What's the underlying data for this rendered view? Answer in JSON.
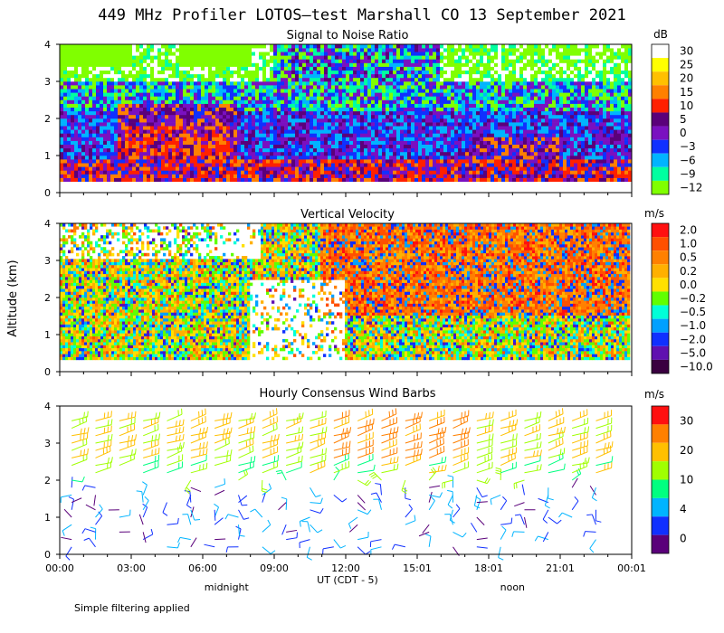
{
  "title": "449 MHz Profiler LOTOS—test Marshall CO 13 September 2021",
  "y_axis_label": "Altitude (km)",
  "x_axis_label": "UT  (CDT - 5)",
  "x_tick_labels": [
    "00:00",
    "03:00",
    "06:00",
    "09:00",
    "12:00",
    "15:01",
    "18:01",
    "21:01",
    "00:01"
  ],
  "x_markers": [
    {
      "label": "midnight",
      "hour": 7
    },
    {
      "label": "noon",
      "hour": 19
    }
  ],
  "footnote": "Simple filtering applied",
  "chart_data": [
    {
      "type": "heatmap",
      "title": "Signal to Noise Ratio",
      "units": "dB",
      "x_range_hours": [
        0,
        24
      ],
      "ylim": [
        0,
        4
      ],
      "y_ticks": [
        "4",
        "3",
        "2",
        "1",
        "0"
      ],
      "colorbar_labels": [
        "30",
        "25",
        "20",
        "15",
        "10",
        "5",
        "0",
        "−3",
        "−6",
        "−9",
        "−12"
      ],
      "colorbar_colors": [
        "#ffffff",
        "#ffff00",
        "#ffc000",
        "#ff8000",
        "#ff2000",
        "#5a007a",
        "#7a10c0",
        "#1030ff",
        "#00b4ff",
        "#00ffa0",
        "#80ff00"
      ],
      "description": "Low levels (0.3-1 km) strong 5-20 dB across the day; 1-2.5 km strong 10-20 dB from 02:30-07:30 and 17:00-21:00; upper levels mostly -6 to 30 dB noise-dominated."
    },
    {
      "type": "heatmap",
      "title": "Vertical Velocity",
      "units": "m/s",
      "x_range_hours": [
        0,
        24
      ],
      "ylim": [
        0,
        4
      ],
      "y_ticks": [
        "4",
        "3",
        "2",
        "1",
        "0"
      ],
      "colorbar_labels": [
        "2.0",
        "1.0",
        "0.5",
        "0.2",
        "0.0",
        "−0.2",
        "−0.5",
        "−1.0",
        "−2.0",
        "−5.0",
        "−10.0"
      ],
      "colorbar_colors": [
        "#ff1010",
        "#ff5000",
        "#ff8000",
        "#ffb000",
        "#ffe000",
        "#60ff00",
        "#00ffd8",
        "#00a0ff",
        "#1030ff",
        "#6010b0",
        "#3a0040"
      ],
      "description": "Mostly -0.2 to 1.0 m/s with strong variability; larger upward values after 12:00 at 2-4 km; data gaps below ~2.5 km 08:00-12:00."
    },
    {
      "type": "wind-barbs",
      "title": "Hourly Consensus Wind Barbs",
      "units": "m/s",
      "x_range_hours": [
        0,
        24
      ],
      "ylim": [
        0,
        4
      ],
      "y_ticks": [
        "4",
        "3",
        "2",
        "1",
        "0"
      ],
      "colorbar_labels": [
        "30",
        "20",
        "10",
        "4",
        "0"
      ],
      "colorbar_colors": [
        "#ff1010",
        "#ff8000",
        "#ffc000",
        "#a0ff00",
        "#00ff80",
        "#00b4ff",
        "#1030ff",
        "#5a007a"
      ],
      "description": "Winds increase with height; upper levels (2.5-4 km) 10-20 m/s westerly, strongest 11:00-16:00; low levels light and variable 0-4 m/s."
    }
  ]
}
